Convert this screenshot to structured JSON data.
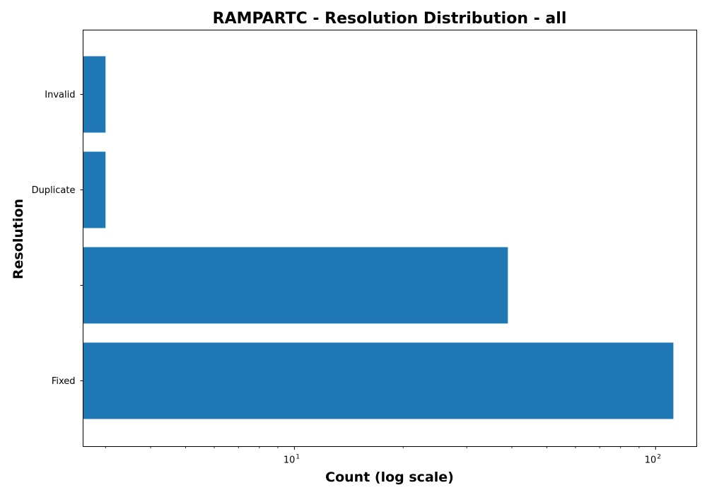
{
  "chart_data": {
    "type": "bar",
    "orientation": "horizontal",
    "title": "RAMPARTC - Resolution Distribution - all",
    "xlabel": "Count (log scale)",
    "ylabel": "Resolution",
    "x_scale": "log",
    "xlim": [
      2.6,
      130
    ],
    "x_ticks": [
      {
        "value": 10,
        "base": "10",
        "exp": "1"
      },
      {
        "value": 100,
        "base": "10",
        "exp": "2"
      }
    ],
    "categories": [
      "Fixed",
      "",
      "Duplicate",
      "Invalid"
    ],
    "values": [
      112,
      39,
      3,
      3
    ],
    "bar_color": "#1f77b4",
    "grid": false,
    "legend": "none"
  }
}
